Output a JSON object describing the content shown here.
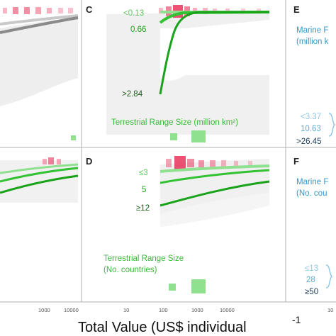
{
  "x_axis": {
    "title": "Total Value (US$ individual",
    "title_superscript": "-1",
    "ticks_left": [
      "1000",
      "10000"
    ],
    "ticks_mid": [
      "10",
      "100",
      "1000",
      "10000"
    ],
    "ticks_right": [
      "10"
    ]
  },
  "colors": {
    "terrestrial_dark": "#1aa31a",
    "terrestrial_mid": "#33c233",
    "terrestrial_light": "#8fe08f",
    "terrestrial_text": "#3cb83c",
    "marine_text": "#3399cc",
    "marine_light": "#8ec8e8",
    "grey_dark": "#8a8a8a",
    "grey_light": "#c9c9c9",
    "rug": "#e8325a",
    "band": "#eeeeee",
    "panel_border": "#b0b0b0"
  },
  "panels": {
    "C": {
      "letter": "C",
      "title": "Terrestrial Range Size (million km²)",
      "levels": [
        "<0.13",
        "0.66",
        ">2.84"
      ]
    },
    "D": {
      "letter": "D",
      "title_line1": "Terrestrial Range Size",
      "title_line2": "(No. countries)",
      "levels": [
        "≤3",
        "5",
        "≥12"
      ]
    },
    "E": {
      "letter": "E",
      "title_line1": "Marine F",
      "title_line2": "(million k",
      "levels": [
        "<3.37",
        "10.63",
        ">26.45"
      ]
    },
    "F": {
      "letter": "F",
      "title_line1": "Marine F",
      "title_line2": "(No. cou",
      "levels": [
        "≤13",
        "28",
        "≥50"
      ]
    }
  },
  "chart_data": [
    {
      "panel": "A (partial)",
      "type": "line",
      "x_scale": "log10",
      "x_tick_labels": [
        "1000",
        "10000"
      ],
      "series": [
        {
          "x": [
            300,
            1000,
            3000,
            10000,
            20000
          ],
          "y": [
            0.3,
            0.42,
            0.52,
            0.6,
            0.63
          ]
        },
        {
          "x": [
            300,
            1000,
            3000,
            10000,
            20000
          ],
          "y": [
            0.22,
            0.34,
            0.46,
            0.56,
            0.6
          ]
        }
      ]
    },
    {
      "panel": "B (partial)",
      "type": "line",
      "x_scale": "log10",
      "x_tick_labels": [
        "1000",
        "10000"
      ],
      "series": [
        {
          "x": [
            300,
            1000,
            3000,
            10000,
            20000
          ],
          "y": [
            0.58,
            0.66,
            0.71,
            0.75,
            0.77
          ]
        },
        {
          "x": [
            300,
            1000,
            3000,
            10000,
            20000
          ],
          "y": [
            0.5,
            0.58,
            0.64,
            0.69,
            0.71
          ]
        },
        {
          "x": [
            300,
            1000,
            3000,
            10000,
            20000
          ],
          "y": [
            0.4,
            0.47,
            0.52,
            0.56,
            0.58
          ]
        }
      ]
    },
    {
      "panel": "C",
      "type": "line",
      "x_scale": "log10",
      "title": "Terrestrial Range Size (million km²)",
      "series": [
        {
          "name": "<0.13",
          "x": [
            300,
            1000,
            3000,
            10000,
            30000
          ],
          "y": [
            0.8,
            0.8,
            0.8,
            0.8,
            0.8
          ]
        },
        {
          "name": "0.66",
          "x": [
            300,
            500,
            1000,
            3000,
            10000,
            30000
          ],
          "y": [
            0.7,
            0.76,
            0.79,
            0.8,
            0.8,
            0.8
          ]
        },
        {
          "name": ">2.84",
          "x": [
            300,
            500,
            700,
            1000,
            1500,
            3000,
            10000,
            30000
          ],
          "y": [
            0.02,
            0.25,
            0.55,
            0.74,
            0.79,
            0.8,
            0.8,
            0.8
          ]
        }
      ]
    },
    {
      "panel": "D",
      "type": "line",
      "x_scale": "log10",
      "x_tick_labels": [
        "10",
        "100",
        "1000",
        "10000"
      ],
      "title": "Terrestrial Range Size (No. countries)",
      "series": [
        {
          "name": "≤3",
          "x": [
            300,
            1000,
            3000,
            10000,
            30000
          ],
          "y": [
            0.67,
            0.7,
            0.73,
            0.75,
            0.76
          ]
        },
        {
          "name": "5",
          "x": [
            300,
            1000,
            3000,
            10000,
            30000
          ],
          "y": [
            0.57,
            0.62,
            0.66,
            0.69,
            0.71
          ]
        },
        {
          "name": "≥12",
          "x": [
            300,
            1000,
            3000,
            10000,
            30000
          ],
          "y": [
            0.4,
            0.47,
            0.53,
            0.58,
            0.61
          ]
        }
      ]
    }
  ]
}
